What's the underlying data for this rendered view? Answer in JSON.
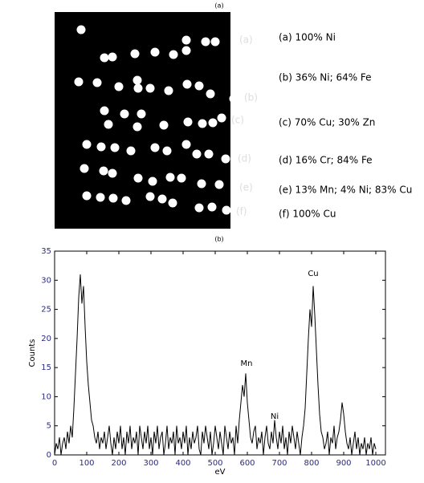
{
  "figure_a": {
    "title": "(a)",
    "image_labels": [
      "(a)",
      "(b)",
      "(c)",
      "(d)",
      "(e)",
      "(f)"
    ],
    "legend": [
      "(a)  100% Ni",
      "(b)  36% Ni;  64% Fe",
      "(c)  70% Cu;  30% Zn",
      "(d)  16% Cr;  84% Fe",
      "(e)  13% Mn; 4% Ni; 83% Cu",
      "(f)  100% Cu"
    ]
  },
  "chart_data": {
    "type": "line",
    "title": "(b)",
    "xlabel": "eV",
    "ylabel": "Counts",
    "color": "#000000",
    "annotations": [
      "Cu",
      "Mn",
      "Ni"
    ],
    "x": [
      0,
      5,
      10,
      15,
      20,
      25,
      30,
      35,
      40,
      45,
      50,
      55,
      60,
      65,
      70,
      75,
      80,
      85,
      90,
      95,
      100,
      105,
      110,
      115,
      120,
      125,
      130,
      135,
      140,
      145,
      150,
      155,
      160,
      165,
      170,
      175,
      180,
      185,
      190,
      195,
      200,
      205,
      210,
      215,
      220,
      225,
      230,
      235,
      240,
      245,
      250,
      255,
      260,
      265,
      270,
      275,
      280,
      285,
      290,
      295,
      300,
      305,
      310,
      315,
      320,
      325,
      330,
      335,
      340,
      345,
      350,
      355,
      360,
      365,
      370,
      375,
      380,
      385,
      390,
      395,
      400,
      405,
      410,
      415,
      420,
      425,
      430,
      435,
      440,
      445,
      450,
      455,
      460,
      465,
      470,
      475,
      480,
      485,
      490,
      495,
      500,
      505,
      510,
      515,
      520,
      525,
      530,
      535,
      540,
      545,
      550,
      555,
      560,
      565,
      570,
      575,
      580,
      585,
      590,
      595,
      600,
      605,
      610,
      615,
      620,
      625,
      630,
      635,
      640,
      645,
      650,
      655,
      660,
      665,
      670,
      675,
      680,
      685,
      690,
      695,
      700,
      705,
      710,
      715,
      720,
      725,
      730,
      735,
      740,
      745,
      750,
      755,
      760,
      765,
      770,
      775,
      780,
      785,
      790,
      795,
      800,
      805,
      810,
      815,
      820,
      825,
      830,
      835,
      840,
      845,
      850,
      855,
      860,
      865,
      870,
      875,
      880,
      885,
      890,
      895,
      900,
      905,
      910,
      915,
      920,
      925,
      930,
      935,
      940,
      945,
      950,
      955,
      960,
      965,
      970,
      975,
      980,
      985,
      990,
      995,
      1000
    ],
    "values": [
      0,
      2,
      1,
      3,
      0,
      2,
      3,
      1,
      4,
      2,
      5,
      3,
      8,
      14,
      20,
      27,
      31,
      26,
      29,
      22,
      16,
      12,
      9,
      6,
      5,
      3,
      2,
      4,
      1,
      3,
      2,
      4,
      1,
      3,
      5,
      2,
      0,
      3,
      1,
      4,
      2,
      5,
      1,
      3,
      0,
      4,
      2,
      5,
      1,
      3,
      2,
      4,
      0,
      5,
      3,
      1,
      4,
      2,
      5,
      1,
      3,
      0,
      4,
      2,
      5,
      1,
      3,
      4,
      0,
      2,
      5,
      1,
      3,
      2,
      4,
      0,
      5,
      2,
      3,
      1,
      4,
      2,
      5,
      0,
      3,
      1,
      4,
      2,
      3,
      5,
      1,
      0,
      4,
      2,
      5,
      3,
      1,
      4,
      0,
      2,
      5,
      3,
      1,
      4,
      2,
      0,
      5,
      3,
      1,
      4,
      2,
      3,
      0,
      5,
      2,
      6,
      9,
      12,
      10,
      14,
      9,
      6,
      3,
      2,
      4,
      5,
      1,
      3,
      2,
      4,
      0,
      3,
      5,
      2,
      1,
      4,
      2,
      6,
      3,
      1,
      4,
      2,
      5,
      1,
      3,
      0,
      4,
      2,
      5,
      3,
      1,
      4,
      2,
      0,
      3,
      5,
      8,
      14,
      20,
      25,
      22,
      29,
      24,
      18,
      12,
      7,
      4,
      3,
      1,
      2,
      4,
      0,
      3,
      2,
      5,
      1,
      3,
      4,
      6,
      9,
      7,
      4,
      2,
      1,
      3,
      0,
      2,
      4,
      1,
      3,
      0,
      2,
      1,
      3,
      0,
      2,
      1,
      3,
      0,
      2,
      1
    ],
    "xlim": [
      0,
      1030
    ],
    "ylim": [
      0,
      35
    ],
    "xticks": [
      0,
      100,
      200,
      300,
      400,
      500,
      600,
      700,
      800,
      900,
      1000
    ],
    "yticks": [
      0,
      5,
      10,
      15,
      20,
      25,
      30,
      35
    ]
  }
}
